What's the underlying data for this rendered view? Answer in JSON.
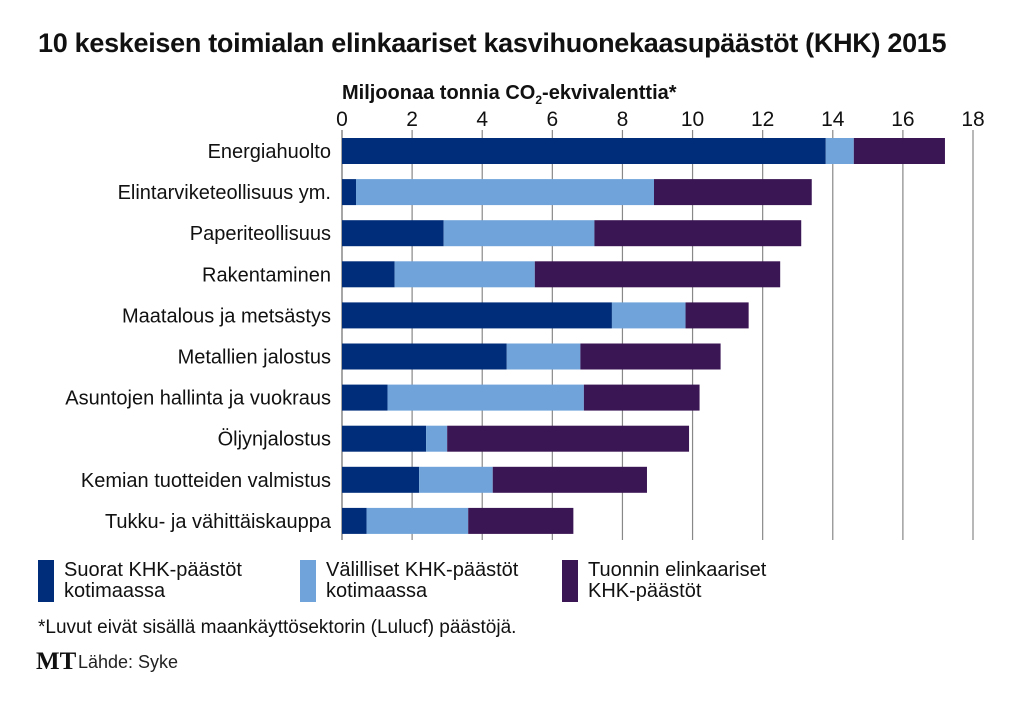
{
  "chart_data": {
    "type": "bar",
    "orientation": "horizontal",
    "stacked": true,
    "title": "10 keskeisen toimialan elinkaariset kasvihuonekaasupäästöt (KHK) 2015",
    "xlabel_main": "Miljoonaa tonnia CO",
    "xlabel_sub": "2",
    "xlabel_tail": "-ekvivalenttia*",
    "xlim": [
      0,
      18
    ],
    "xticks": [
      "0",
      "2",
      "4",
      "6",
      "8",
      "10",
      "12",
      "14",
      "16",
      "18"
    ],
    "grid": true,
    "legend_position": "bottom",
    "categories": [
      "Energiahuolto",
      "Elintarviketeollisuus ym.",
      "Paperiteollisuus",
      "Rakentaminen",
      "Maatalous ja metsästys",
      "Metallien jalostus",
      "Asuntojen hallinta ja vuokraus",
      "Öljynjalostus",
      "Kemian tuotteiden valmistus",
      "Tukku- ja vähittäiskauppa"
    ],
    "series": [
      {
        "name": "Suorat KHK-päästöt kotimaassa",
        "name_line1": "Suorat KHK-päästöt",
        "name_line2": "kotimaassa",
        "color": "#002d7a",
        "values": [
          13.8,
          0.4,
          2.9,
          1.5,
          7.7,
          4.7,
          1.3,
          2.4,
          2.2,
          0.7
        ]
      },
      {
        "name": "Välilliset KHK-päästöt kotimaassa",
        "name_line1": "Välilliset KHK-päästöt",
        "name_line2": "kotimaassa",
        "color": "#6fa3da",
        "values": [
          0.8,
          8.5,
          4.3,
          4.0,
          2.1,
          2.1,
          5.6,
          0.6,
          2.1,
          2.9
        ]
      },
      {
        "name": "Tuonnin elinkaariset KHK-päästöt",
        "name_line1": "Tuonnin elinkaariset",
        "name_line2": "KHK-päästöt",
        "color": "#3b1654",
        "values": [
          2.6,
          4.5,
          5.9,
          7.0,
          1.8,
          4.0,
          3.3,
          6.9,
          4.4,
          3.0
        ]
      }
    ],
    "footnote": "*Luvut eivät sisällä maankäyttösektorin (Lulucf) päästöjä.",
    "logo": "MT",
    "source": "Lähde: Syke"
  }
}
